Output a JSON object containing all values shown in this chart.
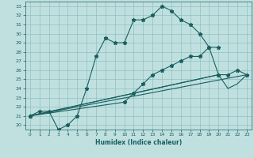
{
  "xlabel": "Humidex (Indice chaleur)",
  "bg_color": "#c0e0e0",
  "line_color": "#1a5f5f",
  "grid_color": "#90c0c0",
  "xlim": [
    -0.5,
    23.5
  ],
  "ylim": [
    19.5,
    33.5
  ],
  "xticks": [
    0,
    1,
    2,
    3,
    4,
    5,
    6,
    7,
    8,
    9,
    10,
    11,
    12,
    13,
    14,
    15,
    16,
    17,
    18,
    19,
    20,
    21,
    22,
    23
  ],
  "yticks": [
    20,
    21,
    22,
    23,
    24,
    25,
    26,
    27,
    28,
    29,
    30,
    31,
    32,
    33
  ],
  "line1_x": [
    0,
    1,
    2,
    3,
    4,
    5,
    6,
    7,
    8,
    9,
    10,
    11,
    12,
    13,
    14,
    15,
    16,
    17,
    18,
    19,
    20
  ],
  "line1_y": [
    21.0,
    21.5,
    21.5,
    19.5,
    20.0,
    21.0,
    24.0,
    27.5,
    29.5,
    29.0,
    29.0,
    31.5,
    31.5,
    32.0,
    33.0,
    32.5,
    31.5,
    31.0,
    30.0,
    28.5,
    28.5
  ],
  "line2_x": [
    0,
    10,
    11,
    12,
    13,
    14,
    15,
    16,
    17,
    18,
    19,
    20
  ],
  "line2_y": [
    21.0,
    22.5,
    23.5,
    24.5,
    25.5,
    26.0,
    26.5,
    27.0,
    27.5,
    27.5,
    28.5,
    25.5
  ],
  "line3_x": [
    0,
    20,
    21,
    22,
    23
  ],
  "line3_y": [
    21.0,
    25.5,
    25.5,
    26.0,
    25.5
  ],
  "line4_x": [
    0,
    20,
    21,
    22,
    23
  ],
  "line4_y": [
    21.0,
    25.5,
    24.0,
    24.5,
    25.5
  ],
  "line5_x": [
    0,
    23
  ],
  "line5_y": [
    21.0,
    25.5
  ]
}
